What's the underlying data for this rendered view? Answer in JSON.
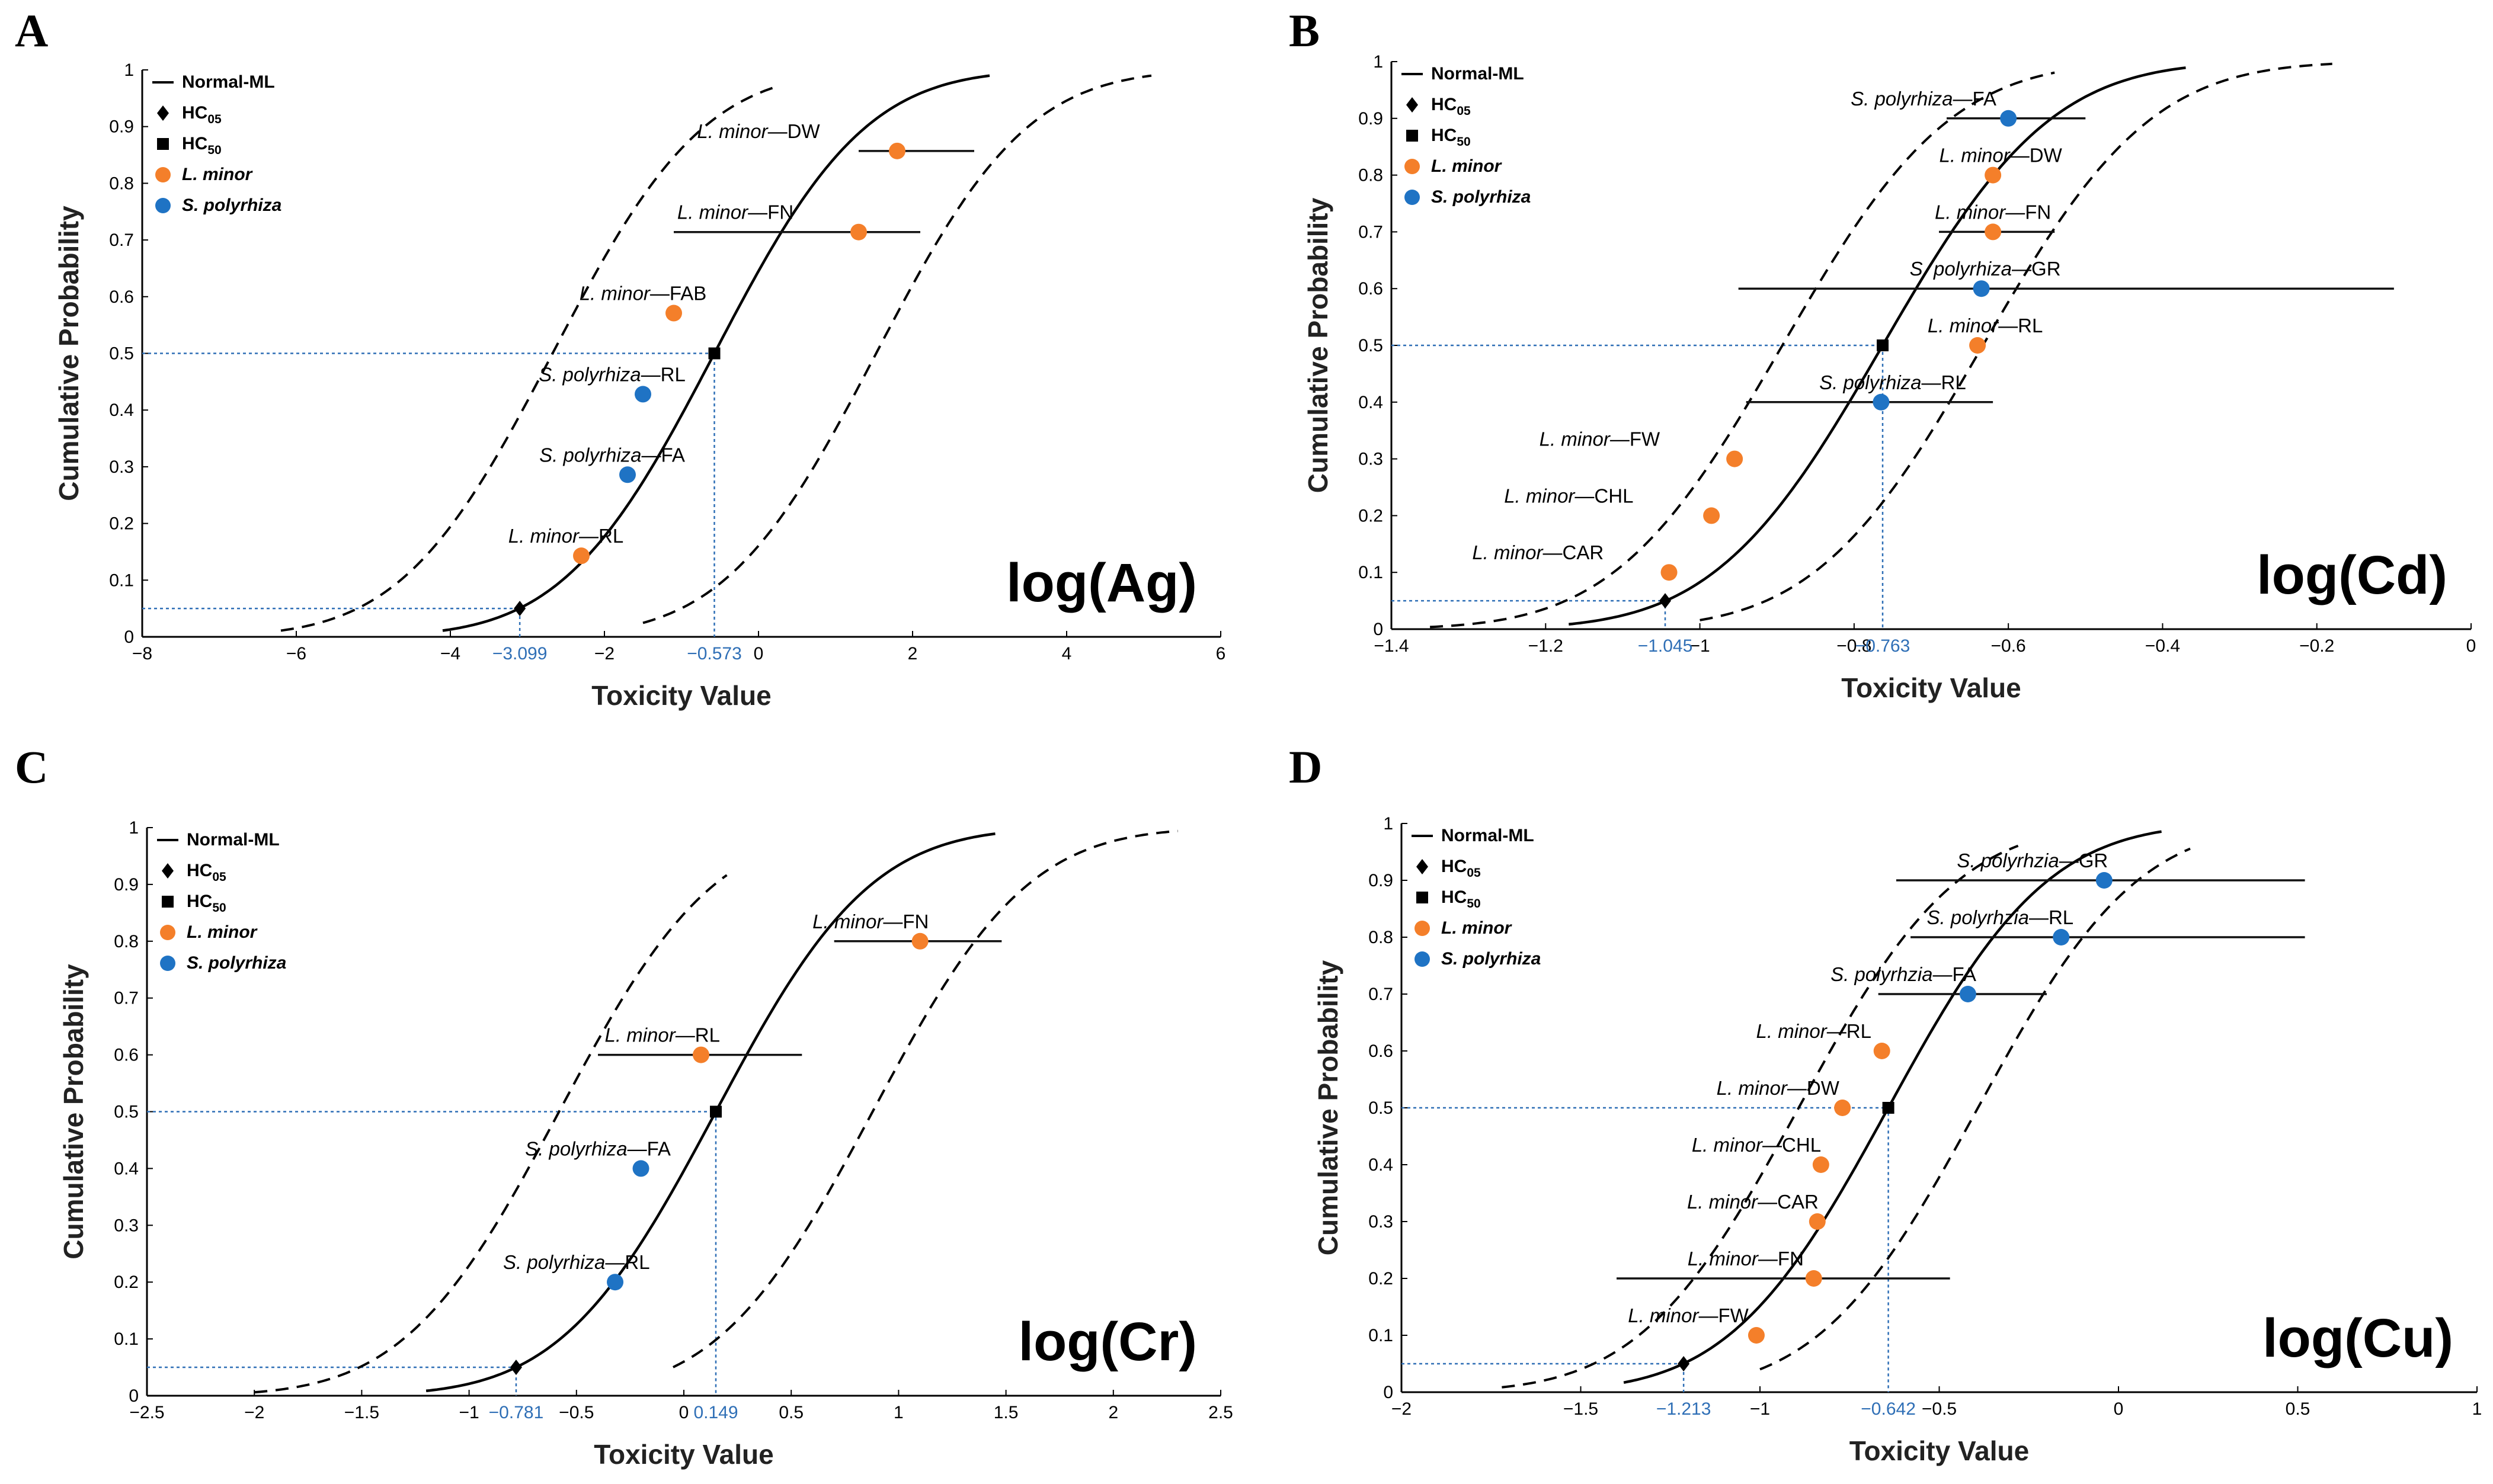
{
  "figure": {
    "legend_labels": [
      "Normal-ML",
      "HC05",
      "HC50",
      "L. minor",
      "S. polyrhiza"
    ],
    "legend_base": [
      "Normal-ML",
      "HC",
      "HC",
      "L. minor",
      "S. polyrhiza"
    ],
    "legend_subs": [
      "",
      "05",
      "50",
      "",
      ""
    ],
    "colors": {
      "l_minor": "#f47f2a",
      "s_polyrhiza": "#1f73c4",
      "curve": "#000000",
      "guide": "#2f6fb6"
    }
  },
  "chart_data": [
    {
      "type": "scatter",
      "panel": "A",
      "title": "log(Ag)",
      "xlabel": "Toxicity Value",
      "ylabel": "Cumulative Probability",
      "xlim": [
        -8,
        6
      ],
      "ylim": [
        0,
        1
      ],
      "xticks": [
        "-8",
        "-6",
        "-4",
        "-2",
        "0",
        "2",
        "4",
        "6"
      ],
      "xtick_values": [
        -8,
        -6,
        -4,
        -2,
        0,
        2,
        4,
        6
      ],
      "yticks": [
        "0",
        "0.1",
        "0.2",
        "0.3",
        "0.4",
        "0.5",
        "0.6",
        "0.7",
        "0.8",
        "0.9",
        "1"
      ],
      "fit": {
        "model": "Normal-ML",
        "mu": -0.573,
        "sigma": 1.54,
        "band": 2.1,
        "curve_range": [
          -4.1,
          3.0
        ],
        "lower_range": [
          -6.2,
          0.2
        ],
        "upper_range": [
          -1.5,
          5.1
        ]
      },
      "hc05": {
        "x": -3.099,
        "y": 0.05,
        "label": "-3.099"
      },
      "hc50": {
        "x": -0.573,
        "y": 0.5,
        "label": "-0.573"
      },
      "points": [
        {
          "species": "L. minor",
          "endpoint": "DW",
          "x": 1.8,
          "y": 0.857,
          "ci": [
            1.3,
            2.8
          ],
          "label_x": 0.0
        },
        {
          "species": "L. minor",
          "endpoint": "FN",
          "x": 1.3,
          "y": 0.714,
          "ci": [
            -1.1,
            2.1
          ],
          "label_x": -0.3
        },
        {
          "species": "L. minor",
          "endpoint": "FAB",
          "x": -1.1,
          "y": 0.571,
          "label_x": -1.5
        },
        {
          "species": "S. polyrhiza",
          "endpoint": "RL",
          "x": -1.5,
          "y": 0.428,
          "label_x": -1.9
        },
        {
          "species": "S. polyrhiza",
          "endpoint": "FA",
          "x": -1.7,
          "y": 0.286,
          "label_x": -1.9
        },
        {
          "species": "L. minor",
          "endpoint": "RL",
          "x": -2.3,
          "y": 0.143,
          "label_x": -2.5
        }
      ]
    },
    {
      "type": "scatter",
      "panel": "B",
      "title": "log(Cd)",
      "xlabel": "Toxicity Value",
      "ylabel": "Cumulative Probability",
      "xlim": [
        -1.4,
        0
      ],
      "ylim": [
        0,
        1
      ],
      "xticks": [
        "-1.4",
        "-1.2",
        "-1",
        "-0.8",
        "-0.6",
        "-0.4",
        "-0.2",
        "0"
      ],
      "xtick_values": [
        -1.4,
        -1.2,
        -1,
        -0.8,
        -0.6,
        -0.4,
        -0.2,
        0
      ],
      "yticks": [
        "0",
        "0.1",
        "0.2",
        "0.3",
        "0.4",
        "0.5",
        "0.6",
        "0.7",
        "0.8",
        "0.9",
        "1"
      ],
      "fit": {
        "model": "Normal-ML",
        "mu": -0.763,
        "sigma": 0.1709,
        "band": 0.13,
        "curve_range": [
          -1.17,
          -0.37
        ],
        "lower_range": [
          -1.35,
          -0.54
        ],
        "upper_range": [
          -1.0,
          -0.18
        ]
      },
      "hc05": {
        "x": -1.045,
        "y": 0.05,
        "label": "-1.045"
      },
      "hc50": {
        "x": -0.763,
        "y": 0.5,
        "label": "-0.763"
      },
      "points": [
        {
          "species": "S. polyrhiza",
          "endpoint": "FA",
          "x": -0.6,
          "y": 0.9,
          "ci": [
            -0.68,
            -0.5
          ],
          "label_x": -0.71
        },
        {
          "species": "L. minor",
          "endpoint": "DW",
          "x": -0.62,
          "y": 0.8,
          "label_x": -0.61
        },
        {
          "species": "L. minor",
          "endpoint": "FN",
          "x": -0.62,
          "y": 0.7,
          "ci": [
            -0.69,
            -0.54
          ],
          "label_x": -0.62
        },
        {
          "species": "S. polyrhiza",
          "endpoint": "GR",
          "x": -0.635,
          "y": 0.6,
          "ci": [
            -0.95,
            -0.1
          ],
          "label_x": -0.63
        },
        {
          "species": "L. minor",
          "endpoint": "RL",
          "x": -0.64,
          "y": 0.5,
          "label_x": -0.63
        },
        {
          "species": "S. polyrhiza",
          "endpoint": "RL",
          "x": -0.765,
          "y": 0.4,
          "ci": [
            -0.94,
            -0.62
          ],
          "label_x": -0.75
        },
        {
          "species": "L. minor",
          "endpoint": "FW",
          "x": -0.955,
          "y": 0.3,
          "label_x": -1.13
        },
        {
          "species": "L. minor",
          "endpoint": "CHL",
          "x": -0.985,
          "y": 0.2,
          "label_x": -1.17
        },
        {
          "species": "L. minor",
          "endpoint": "CAR",
          "x": -1.04,
          "y": 0.1,
          "label_x": -1.21
        }
      ]
    },
    {
      "type": "scatter",
      "panel": "C",
      "title": "log(Cr)",
      "xlabel": "Toxicity Value",
      "ylabel": "Cumulative Probability",
      "xlim": [
        -2.5,
        2.5
      ],
      "ylim": [
        0,
        1
      ],
      "xticks": [
        "-2.5",
        "-2",
        "-1.5",
        "-1",
        "-0.5",
        "0",
        "0.5",
        "1",
        "1.5",
        "2",
        "2.5"
      ],
      "xtick_values": [
        -2.5,
        -2,
        -1.5,
        -1,
        -0.5,
        0,
        0.5,
        1,
        1.5,
        2,
        2.5
      ],
      "yticks": [
        "0",
        "0.1",
        "0.2",
        "0.3",
        "0.4",
        "0.5",
        "0.6",
        "0.7",
        "0.8",
        "0.9",
        "1"
      ],
      "fit": {
        "model": "Normal-ML",
        "mu": 0.149,
        "sigma": 0.5654,
        "band": 0.73,
        "curve_range": [
          -1.2,
          1.45
        ],
        "lower_range": [
          -2.0,
          0.2
        ],
        "upper_range": [
          -0.05,
          2.3
        ]
      },
      "hc05": {
        "x": -0.781,
        "y": 0.05,
        "label": "-0.781"
      },
      "hc50": {
        "x": 0.149,
        "y": 0.5,
        "label": "0.149"
      },
      "points": [
        {
          "species": "L. minor",
          "endpoint": "FN",
          "x": 1.1,
          "y": 0.8,
          "ci": [
            0.7,
            1.48
          ],
          "label_x": 0.87
        },
        {
          "species": "L. minor",
          "endpoint": "RL",
          "x": 0.08,
          "y": 0.6,
          "ci": [
            -0.4,
            0.55
          ],
          "label_x": -0.1
        },
        {
          "species": "S. polyrhiza",
          "endpoint": "FA",
          "x": -0.2,
          "y": 0.4,
          "label_x": -0.4
        },
        {
          "species": "S. polyrhiza",
          "endpoint": "RL",
          "x": -0.32,
          "y": 0.2,
          "label_x": -0.5
        }
      ]
    },
    {
      "type": "scatter",
      "panel": "D",
      "title": "log(Cu)",
      "xlabel": "Toxicity Value",
      "ylabel": "Cumulative Probability",
      "xlim": [
        -2,
        1
      ],
      "ylim": [
        0,
        1
      ],
      "xticks": [
        "-2",
        "-1.5",
        "-1",
        "-0.5",
        "0",
        "0.5",
        "1"
      ],
      "xtick_values": [
        -2,
        -1.5,
        -1,
        -0.5,
        0,
        0.5,
        1
      ],
      "yticks": [
        "0",
        "0.1",
        "0.2",
        "0.3",
        "0.4",
        "0.5",
        "0.6",
        "0.7",
        "0.8",
        "0.9",
        "1"
      ],
      "fit": {
        "model": "Normal-ML",
        "mu": -0.642,
        "sigma": 0.3478,
        "band": 0.25,
        "curve_range": [
          -1.38,
          0.12
        ],
        "lower_range": [
          -1.72,
          -0.28
        ],
        "upper_range": [
          -1.0,
          0.2
        ]
      },
      "hc05": {
        "x": -1.213,
        "y": 0.05,
        "label": "-1.213"
      },
      "hc50": {
        "x": -0.642,
        "y": 0.5,
        "label": "-0.642"
      },
      "points": [
        {
          "species": "S. polyrhzia",
          "endpoint": "GR",
          "x": -0.04,
          "y": 0.9,
          "ci": [
            -0.62,
            0.52
          ],
          "label_x": -0.24
        },
        {
          "species": "S. polyrhzia",
          "endpoint": "RL",
          "x": -0.16,
          "y": 0.8,
          "ci": [
            -0.58,
            0.52
          ],
          "label_x": -0.33
        },
        {
          "species": "S. polyrhzia",
          "endpoint": "FA",
          "x": -0.42,
          "y": 0.7,
          "ci": [
            -0.67,
            -0.2
          ],
          "label_x": -0.6
        },
        {
          "species": "L. minor",
          "endpoint": "RL",
          "x": -0.66,
          "y": 0.6,
          "label_x": -0.85
        },
        {
          "species": "L. minor",
          "endpoint": "DW",
          "x": -0.77,
          "y": 0.5,
          "label_x": -0.95
        },
        {
          "species": "L. minor",
          "endpoint": "CHL",
          "x": -0.83,
          "y": 0.4,
          "label_x": -1.01
        },
        {
          "species": "L. minor",
          "endpoint": "CAR",
          "x": -0.84,
          "y": 0.3,
          "label_x": -1.02
        },
        {
          "species": "L. minor",
          "endpoint": "FN",
          "x": -0.85,
          "y": 0.2,
          "ci": [
            -1.4,
            -0.47
          ],
          "label_x": -1.04
        },
        {
          "species": "L. minor",
          "endpoint": "FW",
          "x": -1.01,
          "y": 0.1,
          "label_x": -1.2
        }
      ]
    }
  ]
}
